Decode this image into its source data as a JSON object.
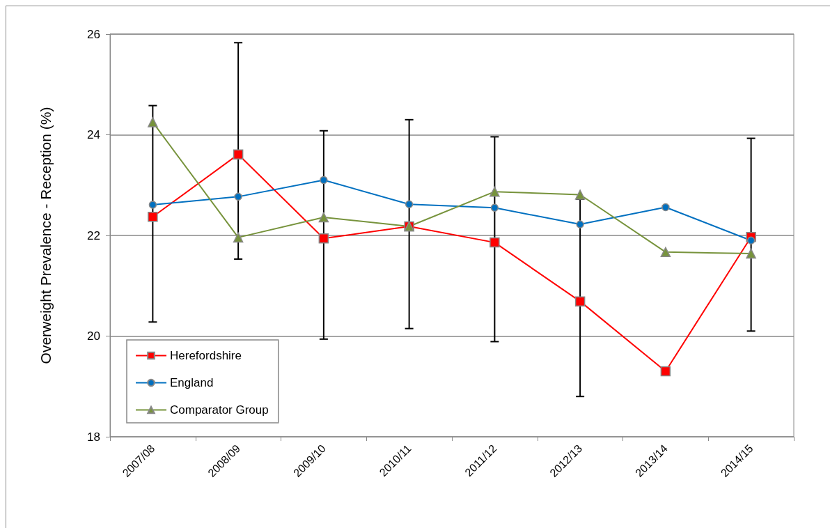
{
  "chart_data": {
    "type": "line",
    "ylabel": "Overweight Prevalence - Reception (%)",
    "categories": [
      "2007/08",
      "2008/09",
      "2009/10",
      "2010/11",
      "2011/12",
      "2012/13",
      "2013/14",
      "2014/15"
    ],
    "series": [
      {
        "name": "Herefordshire",
        "color": "#ff0000",
        "marker": "square",
        "values": [
          22.37,
          23.61,
          21.94,
          22.18,
          21.86,
          20.69,
          19.3,
          21.97
        ],
        "errors": [
          [
            20.28,
            24.58
          ],
          [
            21.53,
            25.83
          ],
          [
            19.94,
            24.08
          ],
          [
            20.15,
            24.3
          ],
          [
            19.89,
            23.96
          ],
          [
            18.8,
            22.72
          ],
          null,
          [
            20.1,
            23.93
          ]
        ]
      },
      {
        "name": "England",
        "color": "#0070c0",
        "marker": "circle",
        "values": [
          22.61,
          22.77,
          23.1,
          22.62,
          22.55,
          22.22,
          22.56,
          21.9
        ]
      },
      {
        "name": "Comparator Group",
        "color": "#77933c",
        "marker": "triangle",
        "values": [
          24.25,
          21.96,
          22.36,
          22.18,
          22.87,
          22.81,
          21.67,
          21.64
        ]
      }
    ],
    "ylim": [
      18,
      26
    ],
    "yticks": [
      18,
      20,
      22,
      24,
      26
    ],
    "grid": "y",
    "legend": "bottom left",
    "line_style": "solid"
  }
}
